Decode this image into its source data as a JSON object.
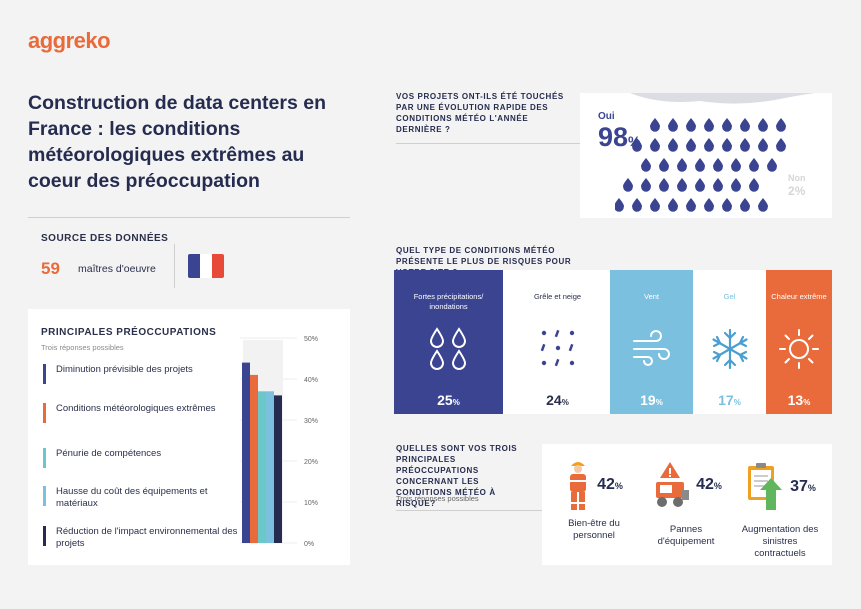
{
  "brand": {
    "logo": "aggreko",
    "orange": "#e96a3a",
    "navy": "#3a4490",
    "light_blue": "#7cc0e0"
  },
  "title": "Construction de data centers en France : les conditions météorologiques extrêmes au coeur des préoccupation",
  "source": {
    "label": "SOURCE DES DONNÉES",
    "count": "59",
    "text": "maîtres d'oeuvre",
    "flag_icon": "france-flag-icon"
  },
  "concerns": {
    "title": "PRINCIPALES PRÉOCCUPATIONS",
    "subtitle": "Trois réponses possibles",
    "items": [
      {
        "label": "Diminution prévisible des projets",
        "color": "#3a4490"
      },
      {
        "label": "Conditions météorologiques extrêmes",
        "color": "#e96a3a"
      },
      {
        "label": "Pénurie de compétences",
        "color": "#6cc7c8"
      },
      {
        "label": "Hausse du coût des équipements et matériaux",
        "color": "#7cc0e0"
      },
      {
        "label": "Réduction de l'impact environnemental des projets",
        "color": "#252c4f"
      }
    ]
  },
  "q1": {
    "label": "VOS PROJETS ONT-ILS ÉTÉ TOUCHÉS PAR UNE ÉVOLUTION RAPIDE DES CONDITIONS MÉTÉO L'ANNÉE DERNIÈRE ?",
    "oui_label": "Oui",
    "oui_value": "98",
    "non_label": "Non",
    "non_value": "2",
    "pct": "%"
  },
  "q2": {
    "label": "QUEL TYPE DE CONDITIONS MÉTÉO PRÉSENTE LE PLUS DE RISQUES POUR VOTRE SITE ?",
    "tiles": [
      {
        "label": "Fortes précipitations/ inondations",
        "value": "25",
        "icon": "rain-drops-icon"
      },
      {
        "label": "Grêle et neige",
        "value": "24",
        "icon": "hail-icon"
      },
      {
        "label": "Vent",
        "value": "19",
        "icon": "wind-icon"
      },
      {
        "label": "Gel",
        "value": "17",
        "icon": "snowflake-icon"
      },
      {
        "label": "Chaleur extrême",
        "value": "13",
        "icon": "sun-icon"
      }
    ]
  },
  "q3": {
    "label": "QUELLES SONT VOS TROIS PRINCIPALES PRÉOCCUPATIONS CONCERNANT LES CONDITIONS MÉTÉO À RISQUE?",
    "subtitle": "Trois réponses possibles",
    "items": [
      {
        "value": "42",
        "label": "Bien-être du personnel",
        "icon": "worker-icon"
      },
      {
        "value": "42",
        "label": "Pannes d'équipement",
        "icon": "loader-warning-icon"
      },
      {
        "value": "37",
        "label": "Augmentation des sinistres contractuels",
        "icon": "clipboard-arrow-icon"
      }
    ]
  },
  "pct": "%",
  "chart_data": {
    "type": "bar",
    "title": "PRINCIPALES PRÉOCCUPATIONS",
    "categories": [
      "Diminution prévisible des projets",
      "Conditions météorologiques extrêmes",
      "Pénurie de compétences",
      "Hausse du coût des équipements et matériaux",
      "Réduction de l'impact environnemental des projets"
    ],
    "values": [
      44,
      41,
      37,
      37,
      36
    ],
    "colors": [
      "#3a4490",
      "#e96a3a",
      "#6cc7c8",
      "#7cc0e0",
      "#252c4f"
    ],
    "ylim": [
      0,
      50
    ],
    "ticks": [
      "0%",
      "10%",
      "20%",
      "30%",
      "40%",
      "50%"
    ]
  }
}
